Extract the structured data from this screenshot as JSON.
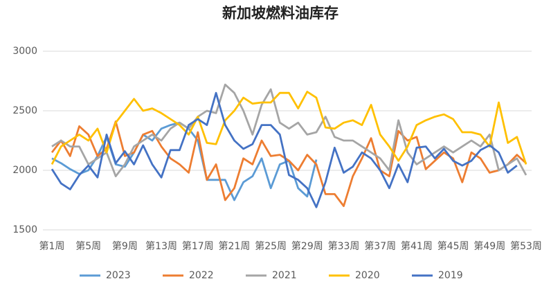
{
  "chart_data": {
    "type": "line",
    "title": "新加坡燃料油库存",
    "categories": [
      "第1周",
      null,
      null,
      null,
      "第5周",
      null,
      null,
      null,
      "第9周",
      null,
      null,
      null,
      "第13周",
      null,
      null,
      null,
      "第17周",
      null,
      null,
      null,
      "第21周",
      null,
      null,
      null,
      "第25周",
      null,
      null,
      null,
      "第29周",
      null,
      null,
      null,
      "第33周",
      null,
      null,
      null,
      "第37周",
      null,
      null,
      null,
      "第41周",
      null,
      null,
      null,
      "第45周",
      null,
      null,
      null,
      "第49周",
      null,
      null,
      null,
      "第53周"
    ],
    "series": [
      {
        "name": "2023",
        "color": "#5b9bd5",
        "values": [
          2100,
          2060,
          2010,
          1970,
          2000,
          2120,
          2280,
          2050,
          2030,
          2150,
          2300,
          2250,
          2350,
          2380,
          2400,
          2350,
          2250,
          1920,
          1920,
          1920,
          1750,
          1900,
          1950,
          2100,
          1850,
          2050,
          2080,
          1850,
          1780,
          2090,
          null,
          null,
          null,
          null,
          null,
          null,
          null,
          null,
          null,
          null,
          null,
          null,
          null,
          null,
          null,
          null,
          null,
          null,
          null,
          null,
          null,
          null,
          null
        ]
      },
      {
        "name": "2022",
        "color": "#ed7d31",
        "values": [
          2150,
          2250,
          2120,
          2370,
          2300,
          2120,
          2180,
          2410,
          2120,
          2150,
          2300,
          2330,
          2200,
          2100,
          2050,
          1980,
          2320,
          1920,
          2050,
          1750,
          1850,
          2100,
          2050,
          2250,
          2120,
          2130,
          2080,
          2000,
          2130,
          2050,
          1800,
          1800,
          1700,
          1950,
          2100,
          2270,
          2000,
          1950,
          2330,
          2250,
          2280,
          2010,
          2080,
          2150,
          2100,
          1900,
          2150,
          2100,
          1980,
          2000,
          2050,
          2130,
          2060
        ]
      },
      {
        "name": "2021",
        "color": "#a5a5a5",
        "values": [
          2200,
          2250,
          2200,
          2200,
          2050,
          2100,
          2150,
          1950,
          2050,
          2200,
          2250,
          2300,
          2250,
          2350,
          2400,
          2350,
          2450,
          2500,
          2480,
          2720,
          2650,
          2500,
          2300,
          2550,
          2680,
          2400,
          2350,
          2400,
          2300,
          2320,
          2450,
          2280,
          2250,
          2250,
          2200,
          2150,
          2100,
          2000,
          2420,
          2150,
          2050,
          2100,
          2150,
          2200,
          2150,
          2200,
          2250,
          2200,
          2300,
          2000,
          2050,
          2100,
          1960
        ]
      },
      {
        "name": "2020",
        "color": "#ffc000",
        "values": [
          2050,
          2200,
          2250,
          2300,
          2250,
          2350,
          2150,
          2400,
          2500,
          2600,
          2500,
          2520,
          2480,
          2430,
          2380,
          2300,
          2450,
          2230,
          2220,
          2420,
          2500,
          2610,
          2560,
          2570,
          2570,
          2650,
          2650,
          2520,
          2660,
          2610,
          2360,
          2350,
          2400,
          2420,
          2380,
          2550,
          2300,
          2200,
          2080,
          2200,
          2380,
          2420,
          2450,
          2470,
          2430,
          2320,
          2320,
          2300,
          2200,
          2570,
          2230,
          2280,
          2050
        ]
      },
      {
        "name": "2019",
        "color": "#4472c4",
        "values": [
          2010,
          1890,
          1840,
          1960,
          2040,
          1940,
          2300,
          2060,
          2160,
          2050,
          2210,
          2050,
          1940,
          2170,
          2170,
          2380,
          2430,
          2380,
          2650,
          2380,
          2250,
          2180,
          2220,
          2380,
          2380,
          2300,
          1960,
          1920,
          1850,
          1690,
          1900,
          2190,
          1980,
          2030,
          2150,
          2100,
          2000,
          1850,
          2050,
          1900,
          2190,
          2200,
          2100,
          2180,
          2080,
          2040,
          2080,
          2170,
          2210,
          2150,
          1980,
          2040,
          null
        ]
      }
    ],
    "ylim": [
      1500,
      3000
    ],
    "yticks": [
      1500,
      2000,
      2500,
      3000
    ],
    "grid": true,
    "legend": "bottom"
  }
}
